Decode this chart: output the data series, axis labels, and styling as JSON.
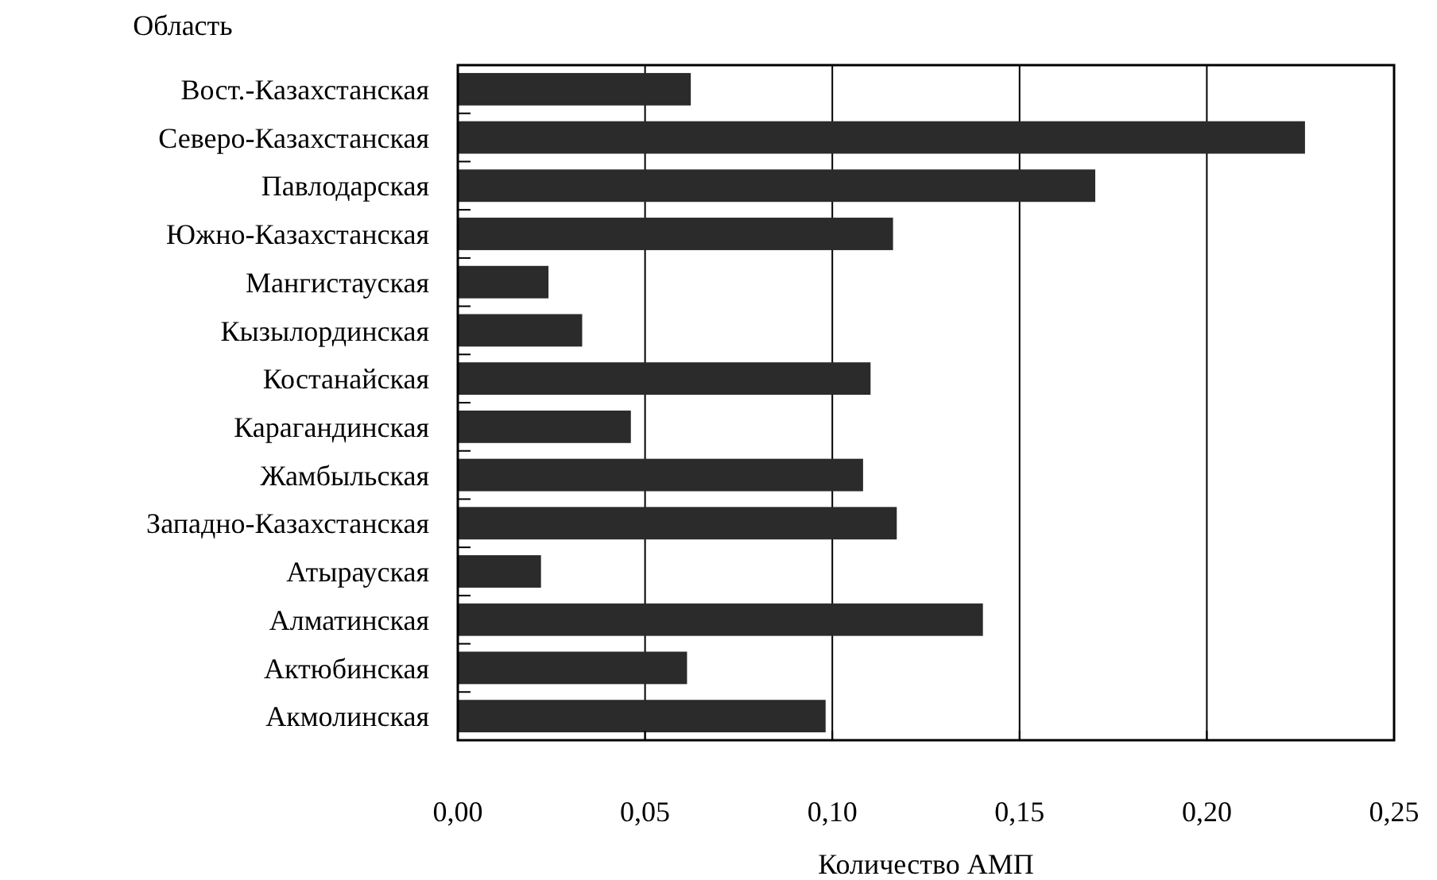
{
  "chart_data": {
    "type": "bar",
    "orientation": "horizontal",
    "ylabel": "Область",
    "xlabel": "Количество АМП",
    "categories": [
      "Вост.-Казахстанская",
      "Северо-Казахстанская",
      "Павлодарская",
      "Южно-Казахстанская",
      "Мангистауская",
      "Кызылординская",
      "Костанайская",
      "Карагандинская",
      "Жамбыльская",
      "Западно-Казахстанская",
      "Атырауская",
      "Алматинская",
      "Актюбинская",
      "Акмолинская"
    ],
    "values": [
      0.062,
      0.226,
      0.17,
      0.116,
      0.024,
      0.033,
      0.11,
      0.046,
      0.108,
      0.117,
      0.022,
      0.14,
      0.061,
      0.098
    ],
    "color": "#2b2b2b",
    "xlim": [
      0,
      0.25
    ],
    "xticks": [
      {
        "value": 0,
        "label": "0,00"
      },
      {
        "value": 0.05,
        "label": "0,05"
      },
      {
        "value": 0.1,
        "label": "0,10"
      },
      {
        "value": 0.15,
        "label": "0,15"
      },
      {
        "value": 0.2,
        "label": "0,20"
      },
      {
        "value": 0.25,
        "label": "0,25"
      }
    ],
    "grid": "x"
  }
}
